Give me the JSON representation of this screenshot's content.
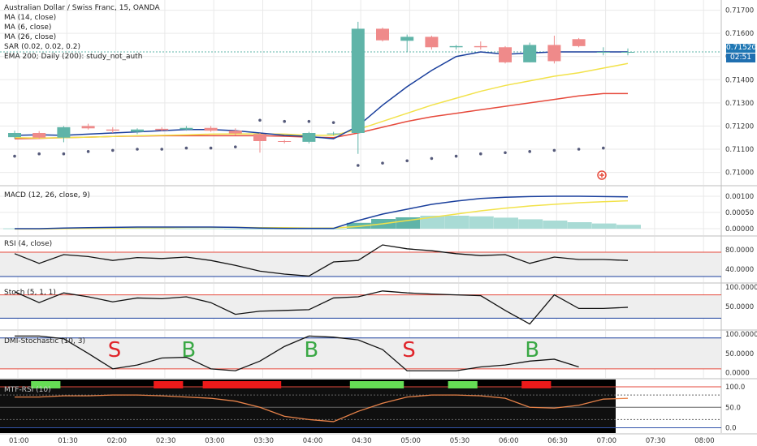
{
  "header": {
    "title": "Australian Dollar / Swiss Franc, 15, OANDA",
    "indicators": [
      "MA (14, close)",
      "MA (6, close)",
      "MA (26, close)",
      "SAR (0.02, 0.02, 0.2)",
      "EMA 200; Daily (200): study_not_auth"
    ]
  },
  "price_tag": {
    "price": "0.71520",
    "countdown": "02:51"
  },
  "colors": {
    "up": "#5fb4a8",
    "down": "#ef8a8a",
    "ma_blue": "#1a3f9c",
    "ma_yellow": "#f2e24a",
    "ma_red": "#e64a3c",
    "sar": "#555a7a",
    "grid": "#e9e9e9",
    "macd_hist_strong": "#5fb4a8",
    "macd_hist_weak": "#a9dbd5",
    "buy": "#3aa845",
    "sell": "#e0242a"
  },
  "chart_data": [
    {
      "type": "candlestick",
      "title": "Australian Dollar / Swiss Franc, 15, OANDA",
      "ylim": [
        0.7096,
        0.7173
      ],
      "y_ticks": [
        "0.71700",
        "0.71600",
        "0.71500",
        "0.71400",
        "0.71300",
        "0.71200",
        "0.71100",
        "0.71000"
      ],
      "x_ticks": [
        "01:00",
        "01:30",
        "02:00",
        "02:30",
        "03:00",
        "03:30",
        "04:00",
        "04:30",
        "05:00",
        "05:30",
        "06:00",
        "06:30",
        "07:00",
        "07:30",
        "08:00"
      ],
      "candles": [
        {
          "t": "01:00",
          "o": 0.71152,
          "h": 0.7118,
          "l": 0.71145,
          "c": 0.7117
        },
        {
          "t": "01:15",
          "o": 0.7117,
          "h": 0.71178,
          "l": 0.71145,
          "c": 0.7115
        },
        {
          "t": "01:30",
          "o": 0.7115,
          "h": 0.712,
          "l": 0.7113,
          "c": 0.71195
        },
        {
          "t": "01:45",
          "o": 0.712,
          "h": 0.7121,
          "l": 0.71185,
          "c": 0.7119
        },
        {
          "t": "02:00",
          "o": 0.71185,
          "h": 0.71195,
          "l": 0.7117,
          "c": 0.7118
        },
        {
          "t": "02:15",
          "o": 0.71175,
          "h": 0.7119,
          "l": 0.71165,
          "c": 0.71185
        },
        {
          "t": "02:30",
          "o": 0.71188,
          "h": 0.71195,
          "l": 0.71178,
          "c": 0.71182
        },
        {
          "t": "02:45",
          "o": 0.71185,
          "h": 0.712,
          "l": 0.7118,
          "c": 0.71192
        },
        {
          "t": "03:00",
          "o": 0.71192,
          "h": 0.712,
          "l": 0.71175,
          "c": 0.7118
        },
        {
          "t": "03:15",
          "o": 0.7118,
          "h": 0.7119,
          "l": 0.7116,
          "c": 0.71168
        },
        {
          "t": "03:30",
          "o": 0.71165,
          "h": 0.7117,
          "l": 0.71085,
          "c": 0.71135
        },
        {
          "t": "03:45",
          "o": 0.71135,
          "h": 0.7114,
          "l": 0.71125,
          "c": 0.71132
        },
        {
          "t": "04:00",
          "o": 0.71132,
          "h": 0.71175,
          "l": 0.71125,
          "c": 0.7117
        },
        {
          "t": "04:15",
          "o": 0.71168,
          "h": 0.71175,
          "l": 0.7116,
          "c": 0.71168
        },
        {
          "t": "04:30",
          "o": 0.7117,
          "h": 0.7165,
          "l": 0.7108,
          "c": 0.7162
        },
        {
          "t": "04:45",
          "o": 0.7162,
          "h": 0.71625,
          "l": 0.71565,
          "c": 0.7157
        },
        {
          "t": "05:00",
          "o": 0.71568,
          "h": 0.71595,
          "l": 0.7152,
          "c": 0.71585
        },
        {
          "t": "05:15",
          "o": 0.71585,
          "h": 0.7159,
          "l": 0.7153,
          "c": 0.7154
        },
        {
          "t": "05:30",
          "o": 0.7154,
          "h": 0.7155,
          "l": 0.7153,
          "c": 0.71545
        },
        {
          "t": "05:45",
          "o": 0.71545,
          "h": 0.71565,
          "l": 0.7153,
          "c": 0.7154
        },
        {
          "t": "06:00",
          "o": 0.7154,
          "h": 0.71545,
          "l": 0.7147,
          "c": 0.71475
        },
        {
          "t": "06:15",
          "o": 0.71475,
          "h": 0.7156,
          "l": 0.71475,
          "c": 0.7155
        },
        {
          "t": "06:30",
          "o": 0.7155,
          "h": 0.7159,
          "l": 0.7147,
          "c": 0.7148
        },
        {
          "t": "06:45",
          "o": 0.71575,
          "h": 0.7158,
          "l": 0.7154,
          "c": 0.71545
        },
        {
          "t": "07:00",
          "o": 0.7152,
          "h": 0.7154,
          "l": 0.71505,
          "c": 0.7152
        },
        {
          "t": "07:15",
          "o": 0.71518,
          "h": 0.71535,
          "l": 0.71505,
          "c": 0.7152
        }
      ],
      "ma_blue": [
        0.7116,
        0.71162,
        0.7116,
        0.71165,
        0.7117,
        0.71175,
        0.7118,
        0.71185,
        0.71185,
        0.7118,
        0.7117,
        0.7116,
        0.71155,
        0.71145,
        0.712,
        0.7129,
        0.7137,
        0.7144,
        0.715,
        0.7152,
        0.7151,
        0.71515,
        0.7152,
        0.7152,
        0.7152,
        0.7152
      ],
      "ma_yellow": [
        0.7115,
        0.71148,
        0.7115,
        0.71152,
        0.71155,
        0.71158,
        0.7116,
        0.71162,
        0.71165,
        0.71166,
        0.71166,
        0.71165,
        0.7116,
        0.7116,
        0.71185,
        0.7122,
        0.71255,
        0.7129,
        0.7132,
        0.7135,
        0.71375,
        0.71395,
        0.71415,
        0.7143,
        0.7145,
        0.7147
      ],
      "ma_red": [
        0.71145,
        0.71147,
        0.7115,
        0.71152,
        0.71155,
        0.71157,
        0.71158,
        0.71158,
        0.71158,
        0.71158,
        0.71158,
        0.71156,
        0.71152,
        0.7115,
        0.7117,
        0.71195,
        0.7122,
        0.7124,
        0.71255,
        0.7127,
        0.71285,
        0.713,
        0.71315,
        0.7133,
        0.7134,
        0.7134
      ],
      "sar": [
        0.7107,
        0.7108,
        0.7108,
        0.7109,
        0.71095,
        0.711,
        0.711,
        0.71105,
        0.71105,
        0.7111,
        0.71225,
        0.7122,
        0.7122,
        0.71215,
        0.7103,
        0.7104,
        0.7105,
        0.7106,
        0.7107,
        0.7108,
        0.71085,
        0.7109,
        0.71095,
        0.711,
        0.71105,
        null
      ]
    },
    {
      "type": "line",
      "title": "MACD (12, 26, close, 9)",
      "ylim": [
        -0.0001,
        0.0012
      ],
      "y_ticks": [
        "0.00100",
        "0.00050",
        "0.00000"
      ],
      "macd": [
        0,
        0,
        2e-05,
        3e-05,
        4e-05,
        5e-05,
        5e-05,
        5e-05,
        5e-05,
        4e-05,
        2e-05,
        1e-05,
        1e-05,
        1e-05,
        0.00025,
        0.00045,
        0.0006,
        0.00075,
        0.00085,
        0.00093,
        0.00097,
        0.00099,
        0.001,
        0.001,
        0.00099,
        0.00098
      ],
      "signal": [
        -1e-05,
        -1e-05,
        0,
        1e-05,
        2e-05,
        3e-05,
        3e-05,
        4e-05,
        4e-05,
        4e-05,
        3e-05,
        3e-05,
        2e-05,
        2e-05,
        7e-05,
        0.00015,
        0.00025,
        0.00035,
        0.00045,
        0.00055,
        0.00063,
        0.0007,
        0.00075,
        0.0008,
        0.00083,
        0.00086
      ],
      "histogram": [
        1e-05,
        1e-05,
        2e-05,
        2e-05,
        2e-05,
        2e-05,
        2e-05,
        1e-05,
        1e-05,
        0,
        -1e-05,
        -2e-05,
        -1e-05,
        -1e-05,
        0.00018,
        0.0003,
        0.00035,
        0.0004,
        0.0004,
        0.00038,
        0.00034,
        0.00029,
        0.00025,
        0.0002,
        0.00016,
        0.00012
      ]
    },
    {
      "type": "line",
      "title": "RSI (4, close)",
      "ylim": [
        20,
        100
      ],
      "y_ticks": [
        "80.0000",
        "40.0000"
      ],
      "bands": [
        75,
        25
      ],
      "values": [
        72,
        52,
        70,
        66,
        58,
        64,
        62,
        65,
        58,
        48,
        36,
        30,
        26,
        55,
        58,
        90,
        82,
        78,
        72,
        68,
        70,
        52,
        65,
        60,
        60,
        58
      ]
    },
    {
      "type": "line",
      "title": "Stoch (5, 1, 1)",
      "ylim": [
        0,
        100
      ],
      "y_ticks": [
        "100.0000",
        "50.0000"
      ],
      "bands": [
        80,
        20
      ],
      "values": [
        88,
        60,
        85,
        75,
        62,
        72,
        70,
        75,
        60,
        30,
        38,
        40,
        42,
        72,
        75,
        90,
        85,
        82,
        80,
        78,
        40,
        5,
        80,
        45,
        45,
        48
      ]
    },
    {
      "type": "line",
      "title": "DMI-Stochastic (10, 3)",
      "ylim": [
        -5,
        100
      ],
      "y_ticks": [
        "100.0000",
        "50.0000",
        "0.0000"
      ],
      "bands": [
        90,
        10
      ],
      "values": [
        95,
        95,
        88,
        50,
        10,
        20,
        38,
        40,
        10,
        5,
        30,
        68,
        95,
        92,
        85,
        60,
        5,
        5,
        5,
        15,
        20,
        30,
        35,
        15
      ],
      "signals": [
        {
          "label": "S",
          "index": 4
        },
        {
          "label": "B",
          "index": 7
        },
        {
          "label": "B",
          "index": 12
        },
        {
          "label": "S",
          "index": 16
        },
        {
          "label": "B",
          "index": 21
        }
      ]
    },
    {
      "type": "line",
      "title": "MTF-RSI (10)",
      "ylim": [
        -5,
        110
      ],
      "y_ticks": [
        "100.0",
        "50.0",
        "0.0"
      ],
      "values": [
        75,
        75,
        78,
        78,
        80,
        80,
        78,
        75,
        72,
        65,
        50,
        28,
        20,
        15,
        40,
        60,
        75,
        80,
        80,
        78,
        72,
        50,
        48,
        55,
        70,
        72
      ],
      "bars": [
        {
          "color": "green",
          "start": 1,
          "end": 2
        },
        {
          "color": "red",
          "start": 6,
          "end": 7
        },
        {
          "color": "red",
          "start": 8,
          "end": 11
        },
        {
          "color": "green",
          "start": 14,
          "end": 16
        },
        {
          "color": "green",
          "start": 18,
          "end": 19
        },
        {
          "color": "red",
          "start": 21,
          "end": 22
        }
      ]
    }
  ]
}
